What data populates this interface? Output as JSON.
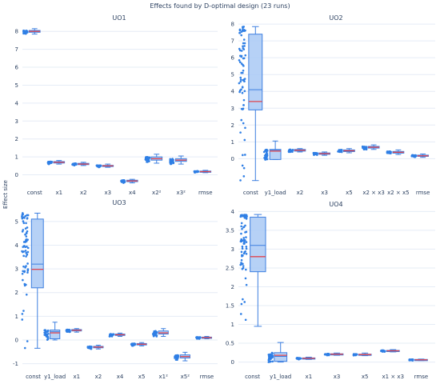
{
  "figure": {
    "title": "Effects found by D-optimal design (23 runs)",
    "ylabel": "Effect size"
  },
  "colors": {
    "box_fill": "#a9c9f5",
    "box_line": "#3d7fe0",
    "points": "#2f7fe5",
    "mean_line": "#e0454f",
    "grid": "#e5ecf6"
  },
  "chart_data": [
    {
      "type": "box",
      "title": "UO1",
      "ylim": [
        -0.6,
        8.5
      ],
      "yticks": [
        0,
        1,
        2,
        3,
        4,
        5,
        6,
        7,
        8
      ],
      "categories": [
        "const",
        "x1",
        "x2",
        "x3",
        "x4",
        "x2²",
        "x3²",
        "rmse"
      ],
      "boxes": [
        {
          "min": 7.85,
          "q1": 7.95,
          "median": 8.0,
          "q3": 8.05,
          "max": 8.15,
          "mean": 8.0
        },
        {
          "min": 0.6,
          "q1": 0.66,
          "median": 0.7,
          "q3": 0.74,
          "max": 0.8,
          "mean": 0.7
        },
        {
          "min": 0.52,
          "q1": 0.57,
          "median": 0.6,
          "q3": 0.64,
          "max": 0.7,
          "mean": 0.6
        },
        {
          "min": 0.42,
          "q1": 0.47,
          "median": 0.5,
          "q3": 0.53,
          "max": 0.6,
          "mean": 0.5
        },
        {
          "min": -0.45,
          "q1": -0.38,
          "median": -0.34,
          "q3": -0.3,
          "max": -0.25,
          "mean": -0.34
        },
        {
          "min": 0.65,
          "q1": 0.82,
          "median": 0.9,
          "q3": 1.0,
          "max": 1.15,
          "mean": 0.9
        },
        {
          "min": 0.6,
          "q1": 0.75,
          "median": 0.82,
          "q3": 0.9,
          "max": 1.05,
          "mean": 0.82
        },
        {
          "min": 0.12,
          "q1": 0.16,
          "median": 0.18,
          "q3": 0.21,
          "max": 0.25,
          "mean": 0.18
        }
      ]
    },
    {
      "type": "box",
      "title": "UO2",
      "ylim": [
        -1.6,
        8.1
      ],
      "yticks": [
        0,
        1,
        2,
        3,
        4,
        5,
        6,
        7,
        8
      ],
      "categories": [
        "const",
        "y1_load",
        "x2",
        "x3",
        "x5",
        "x2 × x3",
        "x2 × x5",
        "rmse"
      ],
      "boxes": [
        {
          "min": -1.3,
          "q1": 2.9,
          "median": 4.1,
          "q3": 7.4,
          "max": 7.85,
          "mean": 3.4
        },
        {
          "min": -0.05,
          "q1": -0.05,
          "median": 0.5,
          "q3": 0.55,
          "max": 1.05,
          "mean": 0.45
        },
        {
          "min": 0.4,
          "q1": 0.45,
          "median": 0.5,
          "q3": 0.55,
          "max": 0.6,
          "mean": 0.5
        },
        {
          "min": 0.2,
          "q1": 0.26,
          "median": 0.3,
          "q3": 0.34,
          "max": 0.4,
          "mean": 0.3
        },
        {
          "min": 0.35,
          "q1": 0.42,
          "median": 0.47,
          "q3": 0.52,
          "max": 0.6,
          "mean": 0.47
        },
        {
          "min": 0.55,
          "q1": 0.63,
          "median": 0.68,
          "q3": 0.73,
          "max": 0.82,
          "mean": 0.68
        },
        {
          "min": 0.25,
          "q1": 0.33,
          "median": 0.38,
          "q3": 0.43,
          "max": 0.52,
          "mean": 0.38
        },
        {
          "min": 0.08,
          "q1": 0.14,
          "median": 0.17,
          "q3": 0.21,
          "max": 0.28,
          "mean": 0.17
        }
      ]
    },
    {
      "type": "box",
      "title": "UO3",
      "ylim": [
        -1.25,
        5.5
      ],
      "yticks": [
        -1,
        0,
        1,
        2,
        3,
        4,
        5
      ],
      "categories": [
        "const",
        "y1_load",
        "x1",
        "x2",
        "x4",
        "x5",
        "x1²",
        "x5²",
        "rmse"
      ],
      "boxes": [
        {
          "min": -0.35,
          "q1": 2.2,
          "median": 3.2,
          "q3": 5.1,
          "max": 5.35,
          "mean": 2.98
        },
        {
          "min": 0.0,
          "q1": 0.05,
          "median": 0.35,
          "q3": 0.42,
          "max": 0.75,
          "mean": 0.3
        },
        {
          "min": 0.33,
          "q1": 0.38,
          "median": 0.41,
          "q3": 0.44,
          "max": 0.48,
          "mean": 0.41
        },
        {
          "min": -0.38,
          "q1": -0.33,
          "median": -0.3,
          "q3": -0.27,
          "max": -0.22,
          "mean": -0.3
        },
        {
          "min": 0.15,
          "q1": 0.19,
          "median": 0.22,
          "q3": 0.25,
          "max": 0.29,
          "mean": 0.22
        },
        {
          "min": -0.25,
          "q1": -0.21,
          "median": -0.18,
          "q3": -0.15,
          "max": -0.11,
          "mean": -0.18
        },
        {
          "min": 0.15,
          "q1": 0.25,
          "median": 0.3,
          "q3": 0.38,
          "max": 0.48,
          "mean": 0.3
        },
        {
          "min": -0.88,
          "q1": -0.76,
          "median": -0.7,
          "q3": -0.63,
          "max": -0.52,
          "mean": -0.7
        },
        {
          "min": 0.05,
          "q1": 0.08,
          "median": 0.1,
          "q3": 0.12,
          "max": 0.15,
          "mean": 0.1
        }
      ]
    },
    {
      "type": "box",
      "title": "UO4",
      "ylim": [
        -0.2,
        4.05
      ],
      "yticks": [
        0,
        0.5,
        1,
        1.5,
        2,
        2.5,
        3,
        3.5,
        4
      ],
      "categories": [
        "const",
        "y1_load",
        "x1",
        "x3",
        "x5",
        "x1 × x3",
        "rmse"
      ],
      "boxes": [
        {
          "min": 0.95,
          "q1": 2.4,
          "median": 3.1,
          "q3": 3.85,
          "max": 3.92,
          "mean": 2.8
        },
        {
          "min": 0.0,
          "q1": 0.02,
          "median": 0.15,
          "q3": 0.25,
          "max": 0.52,
          "mean": 0.18
        },
        {
          "min": 0.07,
          "q1": 0.09,
          "median": 0.1,
          "q3": 0.11,
          "max": 0.13,
          "mean": 0.1
        },
        {
          "min": 0.18,
          "q1": 0.2,
          "median": 0.21,
          "q3": 0.22,
          "max": 0.24,
          "mean": 0.21
        },
        {
          "min": 0.17,
          "q1": 0.19,
          "median": 0.2,
          "q3": 0.21,
          "max": 0.24,
          "mean": 0.2
        },
        {
          "min": 0.27,
          "q1": 0.29,
          "median": 0.3,
          "q3": 0.31,
          "max": 0.33,
          "mean": 0.3
        },
        {
          "min": 0.04,
          "q1": 0.05,
          "median": 0.06,
          "q3": 0.07,
          "max": 0.08,
          "mean": 0.06
        }
      ]
    }
  ]
}
